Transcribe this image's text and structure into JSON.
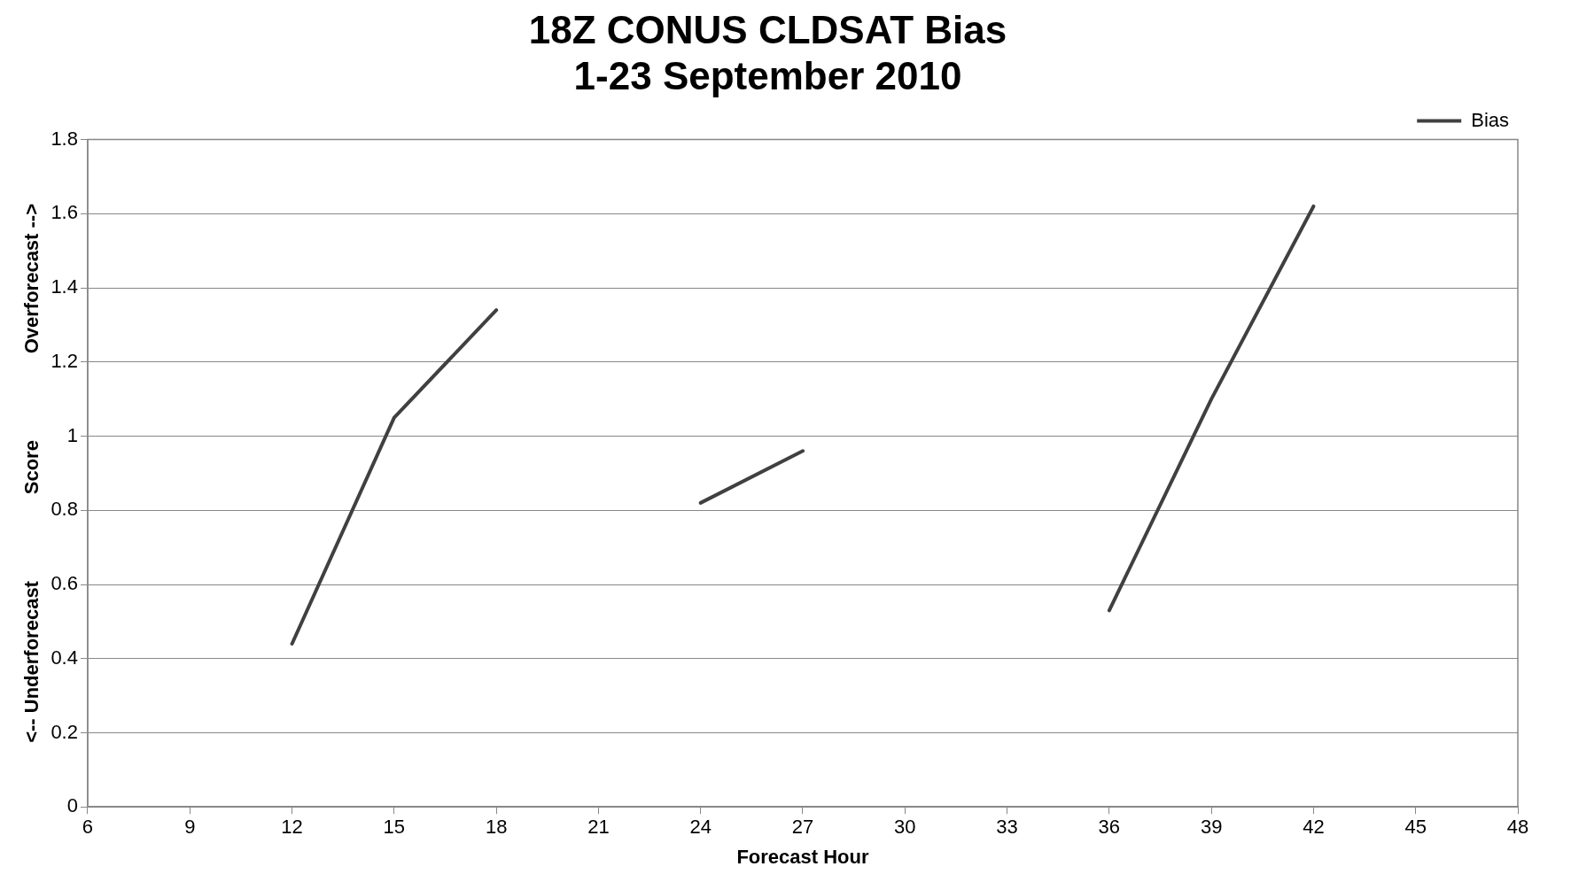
{
  "chart_data": {
    "type": "line",
    "title": [
      "18Z CONUS CLDSAT Bias",
      "1-23 September 2010"
    ],
    "xlabel": "Forecast Hour",
    "ylabel": "<-- Underforecast                Score                Overforecast -->",
    "x": [
      12,
      15,
      18,
      21,
      24,
      27,
      30,
      33,
      36,
      39,
      42
    ],
    "series": [
      {
        "name": "Bias",
        "color": "#404040",
        "values": [
          0.44,
          1.05,
          1.34,
          null,
          0.82,
          0.96,
          null,
          null,
          0.53,
          1.1,
          1.62
        ]
      }
    ],
    "xlim": [
      6,
      48
    ],
    "xticks": [
      6,
      9,
      12,
      15,
      18,
      21,
      24,
      27,
      30,
      33,
      36,
      39,
      42,
      45,
      48
    ],
    "ylim": [
      0,
      1.8
    ],
    "yticks": [
      0,
      {
        "value": 0.2,
        "label": "0.2"
      },
      {
        "value": 0.4,
        "label": "0.4"
      },
      {
        "value": 0.6,
        "label": "0.6"
      },
      {
        "value": 0.8,
        "label": "0.8"
      },
      1,
      {
        "value": 1.2,
        "label": "1.2"
      },
      {
        "value": 1.4,
        "label": "1.4"
      },
      {
        "value": 1.6,
        "label": "1.6"
      },
      {
        "value": 1.8,
        "label": "1.8"
      }
    ],
    "grid": "y",
    "legend": "top right",
    "marker": "none",
    "line_style": "solid"
  }
}
